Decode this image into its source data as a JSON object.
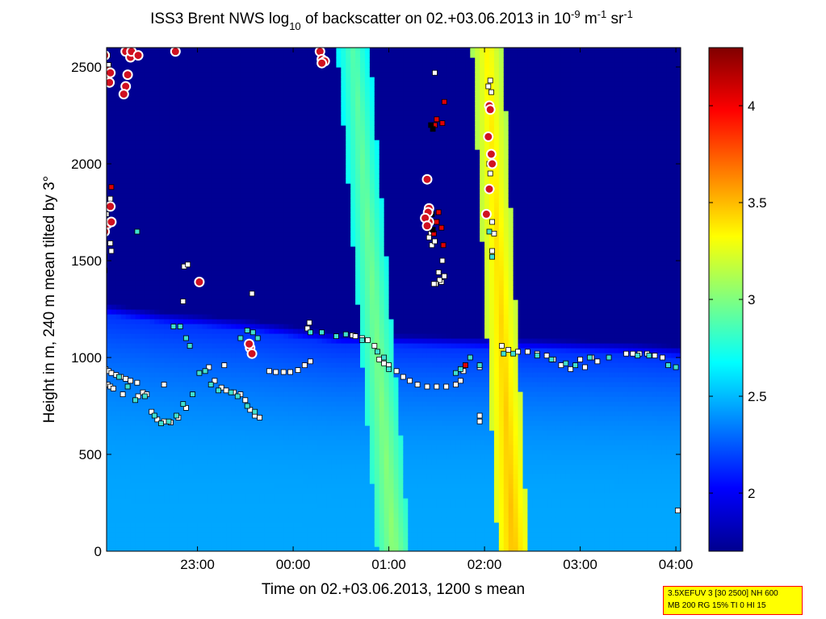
{
  "chart_data": {
    "type": "heatmap",
    "title": {
      "segments": [
        {
          "t": "ISS3 Brent NWS log"
        },
        {
          "t": "10",
          "sub": true
        },
        {
          "t": " of backscatter on 02.+03.06.2013 in 10"
        },
        {
          "t": "-9",
          "sup": true
        },
        {
          "t": " m"
        },
        {
          "t": "-1",
          "sup": true
        },
        {
          "t": " sr"
        },
        {
          "t": "-1",
          "sup": true
        }
      ]
    },
    "xlabel": "Time on 02.+03.06.2013, 1200 s mean",
    "ylabel": "Height in m, 240 m mean tilted by 3°",
    "xlim": [
      22.05,
      28.05
    ],
    "ylim": [
      0,
      2600
    ],
    "xticks": [
      {
        "v": 23,
        "label": "23:00"
      },
      {
        "v": 24,
        "label": "00:00"
      },
      {
        "v": 25,
        "label": "01:00"
      },
      {
        "v": 26,
        "label": "02:00"
      },
      {
        "v": 27,
        "label": "03:00"
      },
      {
        "v": 28,
        "label": "04:00"
      }
    ],
    "yticks": [
      0,
      500,
      1000,
      1500,
      2000,
      2500
    ],
    "colorbar": {
      "clim": [
        1.7,
        4.3
      ],
      "ticks": [
        2,
        2.5,
        3,
        3.5,
        4
      ],
      "colormap": "jet"
    },
    "background_level": 1.75,
    "boundary_layer": {
      "top_m": [
        [
          22.05,
          1220
        ],
        [
          22.6,
          1180
        ],
        [
          23.5,
          1140
        ],
        [
          24.5,
          1070
        ],
        [
          25.5,
          1055
        ],
        [
          26.5,
          1040
        ],
        [
          27.5,
          1020
        ],
        [
          28.05,
          1000
        ]
      ],
      "low_level": 2.45,
      "top_level": 2.15
    },
    "rain_bands": [
      {
        "t_bottom": 25.05,
        "t_top": 24.63,
        "width_h": 0.34,
        "level_max": 3.05,
        "top_m": 2600
      },
      {
        "t_bottom": 26.3,
        "t_top": 26.03,
        "width_h": 0.32,
        "level_max": 3.5,
        "top_m": 2600
      }
    ],
    "point_series": [
      {
        "name": "cloud base",
        "color": "#ffffff",
        "points": [
          [
            22.06,
            2560
          ],
          [
            22.07,
            2510
          ],
          [
            22.05,
            1740
          ],
          [
            22.1,
            1700
          ],
          [
            22.09,
            1590
          ],
          [
            22.1,
            1550
          ],
          [
            22.03,
            1520
          ],
          [
            22.09,
            1820
          ],
          [
            22.86,
            1470
          ],
          [
            22.9,
            1480
          ],
          [
            22.85,
            1290
          ],
          [
            23.57,
            1330
          ],
          [
            24.17,
            1180
          ],
          [
            24.15,
            1150
          ],
          [
            22.65,
            860
          ],
          [
            23.28,
            960
          ],
          [
            25.55,
            1390
          ],
          [
            25.53,
            1400
          ],
          [
            25.58,
            1420
          ],
          [
            25.56,
            1500
          ],
          [
            25.49,
            1380
          ],
          [
            25.52,
            1440
          ],
          [
            25.47,
            1380
          ],
          [
            25.45,
            1580
          ],
          [
            25.5,
            1700
          ],
          [
            25.44,
            1640
          ],
          [
            25.42,
            1620
          ],
          [
            25.48,
            1600
          ],
          [
            25.48,
            2470
          ],
          [
            26.06,
            2430
          ],
          [
            26.04,
            2400
          ],
          [
            26.07,
            2370
          ],
          [
            26.05,
            2000
          ],
          [
            26.06,
            1950
          ],
          [
            26.07,
            1870
          ],
          [
            26.08,
            1700
          ],
          [
            26.1,
            1640
          ],
          [
            26.08,
            1550
          ],
          [
            22.02,
            950
          ],
          [
            22.04,
            940
          ],
          [
            22.07,
            930
          ],
          [
            22.1,
            920
          ],
          [
            22.15,
            910
          ],
          [
            22.2,
            900
          ],
          [
            22.25,
            890
          ],
          [
            22.3,
            880
          ],
          [
            22.37,
            870
          ],
          [
            22.43,
            820
          ],
          [
            22.47,
            810
          ],
          [
            22.52,
            720
          ],
          [
            22.58,
            680
          ],
          [
            22.65,
            670
          ],
          [
            22.72,
            665
          ],
          [
            22.8,
            690
          ],
          [
            22.88,
            740
          ],
          [
            23.12,
            950
          ],
          [
            23.18,
            880
          ],
          [
            23.25,
            845
          ],
          [
            23.3,
            830
          ],
          [
            23.38,
            820
          ],
          [
            23.45,
            810
          ],
          [
            23.5,
            780
          ],
          [
            23.55,
            730
          ],
          [
            23.6,
            700
          ],
          [
            23.65,
            690
          ],
          [
            23.75,
            930
          ],
          [
            23.82,
            925
          ],
          [
            23.9,
            925
          ],
          [
            23.97,
            925
          ],
          [
            24.05,
            935
          ],
          [
            24.12,
            960
          ],
          [
            24.18,
            980
          ],
          [
            24.62,
            1115
          ],
          [
            24.65,
            1110
          ],
          [
            24.72,
            1100
          ],
          [
            24.78,
            1090
          ],
          [
            24.85,
            1060
          ],
          [
            24.9,
            990
          ],
          [
            24.95,
            970
          ],
          [
            25.0,
            960
          ],
          [
            25.08,
            930
          ],
          [
            25.15,
            900
          ],
          [
            25.22,
            880
          ],
          [
            25.3,
            860
          ],
          [
            25.4,
            850
          ],
          [
            25.5,
            850
          ],
          [
            25.6,
            850
          ],
          [
            25.7,
            860
          ],
          [
            25.75,
            880
          ],
          [
            25.78,
            930
          ],
          [
            25.8,
            960
          ],
          [
            26.18,
            1060
          ],
          [
            26.25,
            1040
          ],
          [
            26.35,
            1030
          ],
          [
            26.45,
            1030
          ],
          [
            26.55,
            1020
          ],
          [
            26.65,
            1010
          ],
          [
            26.72,
            990
          ],
          [
            26.8,
            960
          ],
          [
            26.9,
            940
          ],
          [
            27.0,
            990
          ],
          [
            27.05,
            950
          ],
          [
            27.12,
            1000
          ],
          [
            27.18,
            980
          ],
          [
            27.48,
            1020
          ],
          [
            27.55,
            1020
          ],
          [
            27.62,
            1020
          ],
          [
            27.7,
            1020
          ],
          [
            27.78,
            1010
          ],
          [
            27.86,
            1000
          ],
          [
            22.06,
            860
          ],
          [
            22.09,
            850
          ],
          [
            22.12,
            840
          ],
          [
            22.22,
            810
          ],
          [
            22.38,
            800
          ],
          [
            25.95,
            950
          ],
          [
            25.95,
            670
          ],
          [
            25.95,
            700
          ],
          [
            28.02,
            210
          ]
        ]
      },
      {
        "name": "cloud base 2",
        "color": "#40e0d0",
        "points": [
          [
            22.18,
            900
          ],
          [
            22.27,
            850
          ],
          [
            22.35,
            780
          ],
          [
            22.45,
            800
          ],
          [
            22.55,
            700
          ],
          [
            22.62,
            660
          ],
          [
            22.7,
            670
          ],
          [
            22.78,
            700
          ],
          [
            22.85,
            760
          ],
          [
            22.95,
            810
          ],
          [
            23.02,
            920
          ],
          [
            23.08,
            930
          ],
          [
            23.14,
            860
          ],
          [
            23.22,
            830
          ],
          [
            23.35,
            820
          ],
          [
            23.42,
            800
          ],
          [
            23.52,
            750
          ],
          [
            23.6,
            720
          ],
          [
            24.18,
            1130
          ],
          [
            24.3,
            1130
          ],
          [
            24.45,
            1110
          ],
          [
            24.72,
            1090
          ],
          [
            24.88,
            1030
          ],
          [
            24.95,
            1000
          ],
          [
            25.0,
            940
          ],
          [
            25.7,
            920
          ],
          [
            25.75,
            940
          ],
          [
            25.95,
            960
          ],
          [
            26.2,
            1020
          ],
          [
            26.3,
            1020
          ],
          [
            26.55,
            1010
          ],
          [
            26.7,
            990
          ],
          [
            26.85,
            970
          ],
          [
            26.95,
            960
          ],
          [
            27.1,
            1000
          ],
          [
            27.3,
            1000
          ],
          [
            27.6,
            1010
          ],
          [
            27.72,
            1010
          ],
          [
            27.92,
            960
          ],
          [
            28.0,
            950
          ],
          [
            22.37,
            1650
          ],
          [
            22.75,
            1160
          ],
          [
            22.82,
            1160
          ],
          [
            22.88,
            1100
          ],
          [
            22.92,
            1060
          ],
          [
            23.45,
            1100
          ],
          [
            23.52,
            1140
          ],
          [
            23.58,
            1130
          ],
          [
            23.63,
            1100
          ],
          [
            24.55,
            1120
          ],
          [
            25.85,
            1000
          ],
          [
            26.05,
            1650
          ],
          [
            26.08,
            1520
          ],
          [
            22.03,
            1450
          ]
        ]
      },
      {
        "name": "precip",
        "color": "#e00000",
        "points": [
          [
            25.58,
            2320
          ],
          [
            25.56,
            2210
          ],
          [
            25.5,
            2230
          ],
          [
            25.48,
            2200
          ],
          [
            25.52,
            1750
          ],
          [
            25.5,
            1700
          ],
          [
            25.47,
            1640
          ],
          [
            25.55,
            1670
          ],
          [
            25.57,
            1580
          ],
          [
            25.8,
            960
          ],
          [
            22.1,
            1880
          ]
        ]
      },
      {
        "name": "black",
        "color": "#000000",
        "points": [
          [
            25.44,
            2200
          ],
          [
            25.46,
            2180
          ],
          [
            25.45,
            1740
          ],
          [
            25.46,
            1660
          ]
        ]
      },
      {
        "name": "ring",
        "color": "#d01020",
        "points": [
          [
            22.03,
            2560
          ],
          [
            22.06,
            2480
          ],
          [
            22.05,
            2440
          ],
          [
            22.08,
            2420
          ],
          [
            22.09,
            2470
          ],
          [
            22.03,
            1650
          ],
          [
            22.06,
            1690
          ],
          [
            22.09,
            1780
          ],
          [
            22.1,
            1700
          ],
          [
            22.25,
            2580
          ],
          [
            22.3,
            2550
          ],
          [
            22.27,
            2460
          ],
          [
            22.25,
            2400
          ],
          [
            22.23,
            2360
          ],
          [
            22.31,
            2580
          ],
          [
            22.38,
            2560
          ],
          [
            22.77,
            2580
          ],
          [
            23.02,
            1390
          ],
          [
            24.28,
            2580
          ],
          [
            24.3,
            2540
          ],
          [
            24.33,
            2530
          ],
          [
            24.3,
            2520
          ],
          [
            23.55,
            1050
          ],
          [
            23.57,
            1020
          ],
          [
            23.54,
            1070
          ],
          [
            25.4,
            1920
          ],
          [
            25.42,
            1770
          ],
          [
            25.41,
            1750
          ],
          [
            25.42,
            1700
          ],
          [
            25.38,
            1720
          ],
          [
            25.4,
            1680
          ],
          [
            26.05,
            2300
          ],
          [
            26.06,
            2280
          ],
          [
            26.04,
            2140
          ],
          [
            26.07,
            2050
          ],
          [
            26.08,
            2000
          ],
          [
            26.05,
            1870
          ],
          [
            26.02,
            1740
          ]
        ]
      }
    ]
  },
  "info_box": {
    "line1": "3.5XEFUV 3 [30 2500] NH 600",
    "line2": "MB 200 RG 15% TI 0 HI 15"
  }
}
